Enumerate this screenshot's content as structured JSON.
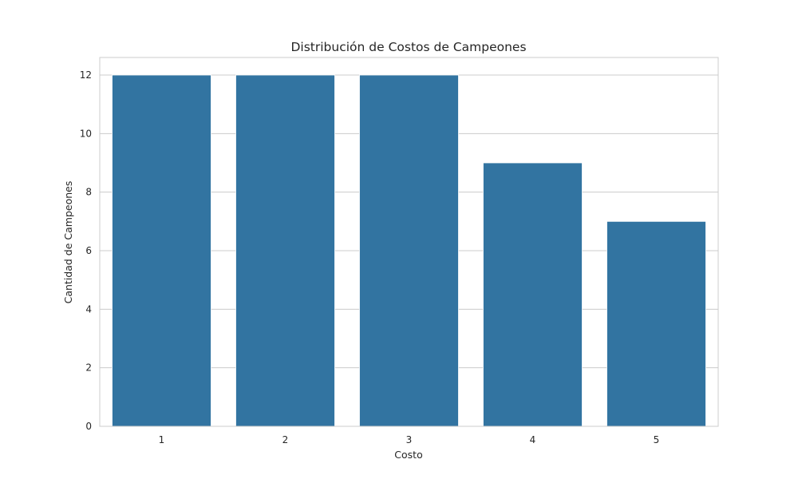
{
  "chart_data": {
    "type": "bar",
    "title": "Distribución de Costos de Campeones",
    "xlabel": "Costo",
    "ylabel": "Cantidad de Campeones",
    "categories": [
      "1",
      "2",
      "3",
      "4",
      "5"
    ],
    "values": [
      12,
      12,
      12,
      9,
      7
    ],
    "ylim": [
      0,
      12.6
    ],
    "yticks": [
      0,
      2,
      4,
      6,
      8,
      10,
      12
    ],
    "bar_color": "#3274a1",
    "grid": "horizontal",
    "legend": "none"
  }
}
